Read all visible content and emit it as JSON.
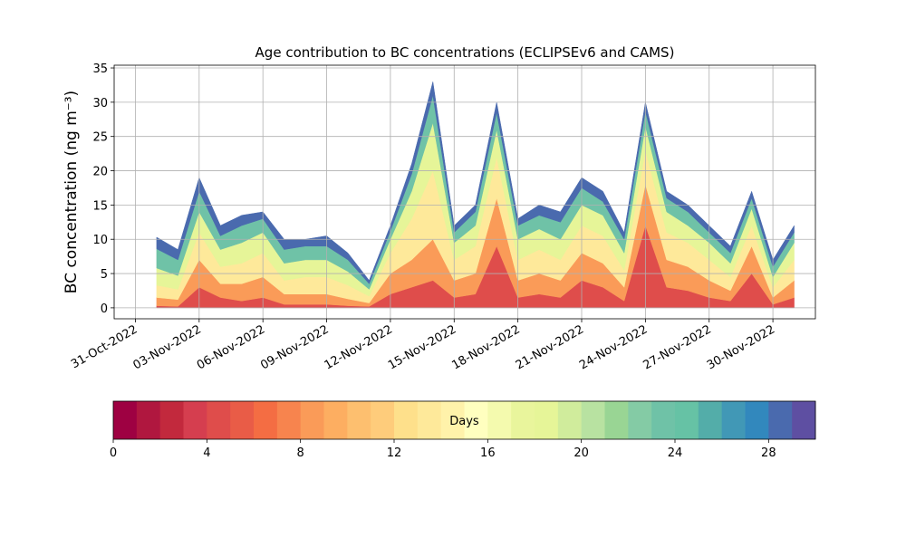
{
  "chart_data": {
    "type": "stacked_area",
    "title": "Age contribution to BC concentrations (ECLIPSEv6 and CAMS)",
    "y_label": "BC concentration (ng m⁻³)",
    "x": [
      "01-Nov-2022",
      "02-Nov-2022",
      "03-Nov-2022",
      "04-Nov-2022",
      "05-Nov-2022",
      "06-Nov-2022",
      "07-Nov-2022",
      "08-Nov-2022",
      "09-Nov-2022",
      "10-Nov-2022",
      "11-Nov-2022",
      "12-Nov-2022",
      "13-Nov-2022",
      "14-Nov-2022",
      "15-Nov-2022",
      "16-Nov-2022",
      "17-Nov-2022",
      "18-Nov-2022",
      "19-Nov-2022",
      "20-Nov-2022",
      "21-Nov-2022",
      "22-Nov-2022",
      "23-Nov-2022",
      "24-Nov-2022",
      "25-Nov-2022",
      "26-Nov-2022",
      "27-Nov-2022",
      "28-Nov-2022",
      "29-Nov-2022",
      "30-Nov-2022",
      "01-Dec-2022"
    ],
    "series": [
      {
        "color": "#df4d4b",
        "values": [
          0.3,
          0.2,
          3,
          1.5,
          1,
          1.5,
          0.5,
          0.5,
          0.5,
          0.3,
          0.2,
          2,
          3,
          4,
          1.5,
          2,
          9,
          1.5,
          2,
          1.5,
          4,
          3,
          1,
          12,
          3,
          2.5,
          1.5,
          1,
          5,
          0.5,
          1.5
        ]
      },
      {
        "color": "#fa9b58",
        "values": [
          1.2,
          1.0,
          4,
          2,
          2.5,
          3,
          1.5,
          1.5,
          1.5,
          1,
          0.5,
          3,
          4,
          6,
          2.5,
          3,
          7,
          2.5,
          3,
          2.5,
          4,
          3.5,
          2,
          6,
          4,
          3.5,
          2.5,
          1.5,
          4,
          1,
          2.5
        ]
      },
      {
        "color": "#fee99a",
        "values": [
          1.8,
          1.5,
          4,
          2.5,
          3,
          3.5,
          2,
          2.5,
          2.5,
          2,
          1,
          3,
          6,
          10,
          3,
          4,
          6,
          3,
          3.5,
          3,
          4,
          4,
          2.5,
          5,
          4,
          3.5,
          3,
          2,
          3,
          1.5,
          3
        ]
      },
      {
        "color": "#e6f598",
        "values": [
          2.5,
          2.0,
          3,
          2.5,
          3,
          3,
          2.5,
          2.5,
          2.5,
          2,
          1,
          2,
          4,
          7,
          2.5,
          3,
          4,
          3,
          3,
          3,
          3,
          3,
          2.5,
          3.5,
          3,
          2.5,
          2.5,
          2,
          2.5,
          1.5,
          2.5
        ]
      },
      {
        "color": "#6fc2a7",
        "values": [
          2.8,
          2.3,
          3,
          2,
          2.5,
          2,
          2,
          2,
          2,
          1.7,
          0.8,
          1.2,
          2.5,
          4,
          1.5,
          2,
          2.5,
          2,
          2,
          2.5,
          2.5,
          2,
          2,
          2.2,
          2,
          2,
          1.5,
          1.5,
          1.5,
          1.5,
          1.5
        ]
      },
      {
        "color": "#4a6aae",
        "values": [
          1.7,
          1.5,
          2,
          1.5,
          1.5,
          1,
          1.5,
          1,
          1.5,
          1,
          0.5,
          0.8,
          1.5,
          2,
          1,
          1,
          1.5,
          1,
          1.5,
          1.5,
          1.5,
          1.5,
          1,
          1.3,
          1,
          1,
          1,
          1,
          1,
          1,
          1
        ]
      }
    ],
    "xlim": [
      "30-Oct-2022",
      "02-Dec-2022"
    ],
    "xticks": [
      "31-Oct-2022",
      "03-Nov-2022",
      "06-Nov-2022",
      "09-Nov-2022",
      "12-Nov-2022",
      "15-Nov-2022",
      "18-Nov-2022",
      "21-Nov-2022",
      "24-Nov-2022",
      "27-Nov-2022",
      "30-Nov-2022"
    ],
    "ylim": [
      -1.6,
      35.4
    ],
    "yticks": [
      0,
      5,
      10,
      15,
      20,
      25,
      30,
      35
    ],
    "grid": true,
    "colorbar": {
      "label": "Days",
      "lim": [
        0,
        30
      ],
      "ticks": [
        0,
        4,
        8,
        12,
        16,
        20,
        24,
        28
      ],
      "colors": [
        "#9e0142",
        "#b0173f",
        "#c2293d",
        "#d53e4f",
        "#df4d4b",
        "#e95c47",
        "#f46d43",
        "#f7844e",
        "#fa9b58",
        "#fdae61",
        "#fdbf6f",
        "#fecc7b",
        "#fee08b",
        "#fee99a",
        "#fff2aa",
        "#ffffbf",
        "#f4faae",
        "#e9f59c",
        "#e6f598",
        "#d0ec9c",
        "#b8e2a1",
        "#99d594",
        "#84cba5",
        "#6fc2a7",
        "#66c2a5",
        "#53ada9",
        "#4198b6",
        "#3288bd",
        "#4a6aae",
        "#5e4fa2"
      ]
    }
  }
}
